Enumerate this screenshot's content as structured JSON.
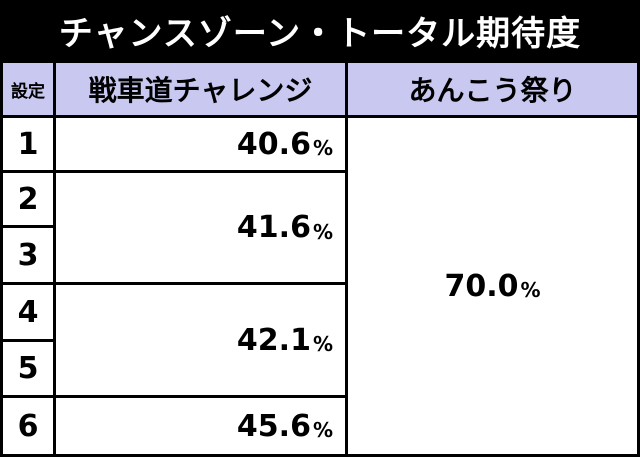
{
  "title": "チャンスゾーン・トータル期待度",
  "headers": {
    "setting": "設定",
    "challenge": "戦車道チャレンジ",
    "festival": "あんこう祭り"
  },
  "settings": [
    "1",
    "2",
    "3",
    "4",
    "5",
    "6"
  ],
  "challenge_values": [
    {
      "value": "40.6",
      "unit": "%"
    },
    {
      "value": "41.6",
      "unit": "%"
    },
    {
      "value": "42.1",
      "unit": "%"
    },
    {
      "value": "45.6",
      "unit": "%"
    }
  ],
  "festival_value": {
    "value": "70.0",
    "unit": "%"
  },
  "colors": {
    "background": "#000000",
    "header_bg": "#c8c8f0",
    "cell_bg": "#ffffff",
    "title_text": "#ffffff"
  }
}
